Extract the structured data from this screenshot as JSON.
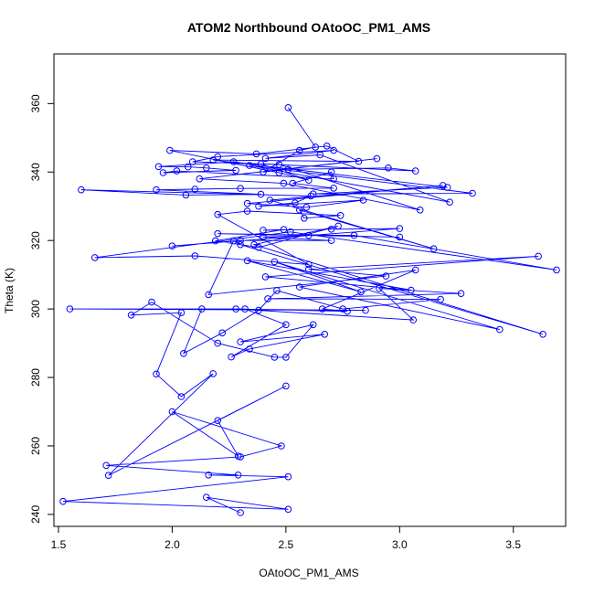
{
  "chart_data": {
    "type": "scatter",
    "title": "ATOM2 Northbound OAtoOC_PM1_AMS",
    "xlabel": "OAtoOC_PM1_AMS",
    "ylabel": "Theta (K)",
    "xlim": [
      1.48,
      3.73
    ],
    "ylim": [
      236.5,
      374.5
    ],
    "xticks": [
      1.5,
      2.0,
      2.5,
      3.0,
      3.5
    ],
    "xtick_labels": [
      "1.5",
      "2.0",
      "2.5",
      "3.0",
      "3.5"
    ],
    "yticks": [
      240,
      260,
      280,
      300,
      320,
      340,
      360
    ],
    "ytick_labels": [
      "240",
      "260",
      "280",
      "300",
      "320",
      "340",
      "360"
    ],
    "grid": false,
    "legend": "none",
    "color": "#0000ff",
    "connected": true,
    "series": [
      {
        "x": [
          2.3,
          2.15,
          2.51,
          1.52,
          2.51,
          2.16,
          2.29,
          1.71,
          2.3,
          2.48,
          2.0,
          2.29,
          2.2,
          2.5,
          1.72,
          2.18,
          2.04,
          1.93,
          2.04,
          1.82,
          1.91,
          2.2,
          2.45,
          2.5,
          2.62,
          2.3,
          2.67,
          2.34,
          2.26,
          2.5,
          2.32,
          1.55,
          2.85,
          2.13,
          2.05,
          2.22,
          2.38,
          2.46,
          2.75,
          3.18,
          2.42,
          3.27,
          2.91,
          3.06,
          2.28,
          2.77,
          2.66,
          3.07,
          2.56,
          3.44,
          2.45,
          2.83,
          2.33,
          3.05,
          2.41,
          3.61,
          2.6,
          2.94,
          2.16,
          2.27,
          2.3,
          3.63,
          2.36,
          2.73,
          2.38,
          2.19,
          2.49,
          2.4,
          2.7,
          3.0,
          2.0,
          2.3,
          2.7,
          2.4,
          2.6,
          3.0,
          2.2,
          2.8,
          3.69,
          2.52,
          1.66,
          2.1,
          2.6,
          2.2,
          2.33,
          2.74,
          2.58,
          2.56,
          3.15,
          2.43,
          3.19,
          2.33,
          2.59,
          2.84,
          2.38,
          2.54,
          2.61,
          1.6,
          2.06,
          2.39,
          1.93,
          2.1,
          2.3,
          2.71,
          2.53,
          2.7,
          2.71,
          2.02,
          1.96,
          2.28,
          2.15,
          2.07,
          1.94,
          2.27,
          2.51,
          2.95,
          3.07,
          2.39,
          2.6,
          2.47,
          1.99,
          2.37,
          2.68,
          2.82,
          2.18,
          3.21,
          2.62,
          3.32,
          2.34,
          3.22,
          2.65,
          2.41,
          2.71,
          2.2,
          2.09,
          2.47,
          3.09,
          2.49,
          2.12,
          2.9,
          2.4,
          2.56,
          2.63,
          2.51
        ],
        "y": [
          240.5,
          245.0,
          241.5,
          243.8,
          251.0,
          251.5,
          251.5,
          254.3,
          256.8,
          260.0,
          270.0,
          257.0,
          267.4,
          277.5,
          251.4,
          281.1,
          274.4,
          281.0,
          298.9,
          298.2,
          302.0,
          290.0,
          285.9,
          285.9,
          295.4,
          290.4,
          292.6,
          288.3,
          286.0,
          295.4,
          300.0,
          300.0,
          299.6,
          300.0,
          287.0,
          293.0,
          299.6,
          305.4,
          300.0,
          302.8,
          303.0,
          304.5,
          306.0,
          296.8,
          300.0,
          299.3,
          300.0,
          311.4,
          306.4,
          294.0,
          313.8,
          305.0,
          314.1,
          305.5,
          309.4,
          315.4,
          311.6,
          309.6,
          304.2,
          319.9,
          318.8,
          292.6,
          318.8,
          324.2,
          318.0,
          319.9,
          323.2,
          323.0,
          323.3,
          323.5,
          318.4,
          320.0,
          320.0,
          321.0,
          321.5,
          321.0,
          322.0,
          321.5,
          311.4,
          322.5,
          315.0,
          315.5,
          313.0,
          327.6,
          328.6,
          327.3,
          326.5,
          328.9,
          317.6,
          331.8,
          336.1,
          330.8,
          329.7,
          331.8,
          330.0,
          331.0,
          333.0,
          334.8,
          333.3,
          333.5,
          334.8,
          335.0,
          335.2,
          335.3,
          336.7,
          340.0,
          338.0,
          340.3,
          339.8,
          340.5,
          341.2,
          341.5,
          341.6,
          343.0,
          340.8,
          341.2,
          340.3,
          342.4,
          337.6,
          339.8,
          346.3,
          345.3,
          347.6,
          343.1,
          343.5,
          335.5,
          333.6,
          333.8,
          341.9,
          331.2,
          345.0,
          344.0,
          346.3,
          344.5,
          343.0,
          342.2,
          328.9,
          336.7,
          338.0,
          343.9,
          340.0,
          346.3,
          347.3,
          358.8
        ]
      }
    ]
  }
}
